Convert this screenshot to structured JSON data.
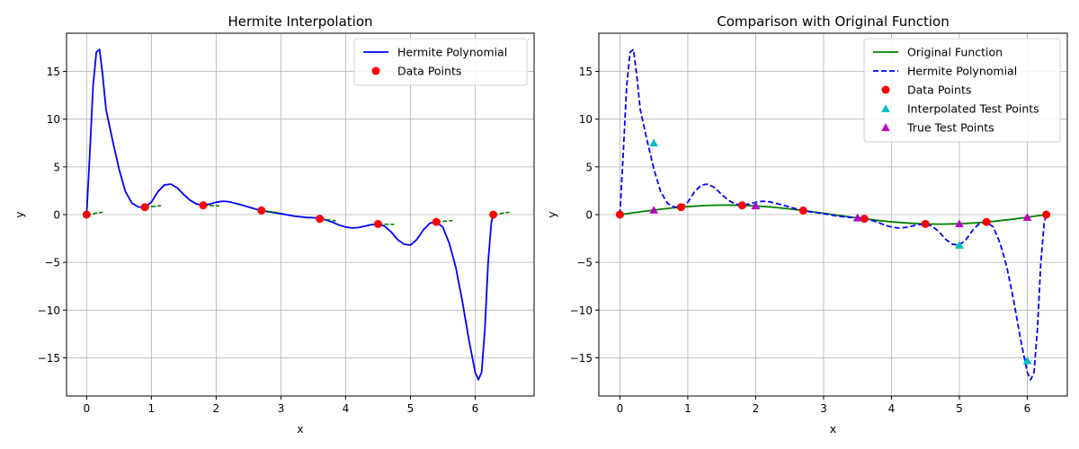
{
  "chart_data": [
    {
      "type": "line",
      "title": "Hermite Interpolation",
      "xlabel": "x",
      "ylabel": "y",
      "xlim": [
        -0.31,
        6.91
      ],
      "ylim": [
        -19.0,
        19.0
      ],
      "xticks": [
        0,
        1,
        2,
        3,
        4,
        5,
        6
      ],
      "xtick_labels": [
        "0",
        "1",
        "2",
        "3",
        "4",
        "5",
        "6"
      ],
      "yticks": [
        -15,
        -10,
        -5,
        0,
        5,
        10,
        15
      ],
      "ytick_labels": [
        "−15",
        "−10",
        "−5",
        "0",
        "5",
        "10",
        "15"
      ],
      "grid": true,
      "legend_position": "top-right",
      "series": [
        {
          "name": "Hermite Polynomial",
          "style": "solid",
          "color": "#0000ff",
          "x": [
            0,
            0.05,
            0.1,
            0.15,
            0.2,
            0.25,
            0.3,
            0.4,
            0.5,
            0.6,
            0.7,
            0.8,
            0.9,
            1.0,
            1.1,
            1.2,
            1.3,
            1.4,
            1.5,
            1.6,
            1.7,
            1.8,
            1.9,
            2.0,
            2.1,
            2.2,
            2.4,
            2.6,
            2.7,
            2.8,
            3.0,
            3.2,
            3.4,
            3.6,
            3.8,
            3.9,
            4.0,
            4.1,
            4.2,
            4.3,
            4.4,
            4.5,
            4.6,
            4.7,
            4.8,
            4.9,
            5.0,
            5.1,
            5.2,
            5.3,
            5.4,
            5.5,
            5.6,
            5.7,
            5.8,
            5.9,
            6.0,
            6.05,
            6.1,
            6.15,
            6.2,
            6.25,
            6.28
          ],
          "y": [
            0,
            6.5,
            13.5,
            17.0,
            17.3,
            14.5,
            11.0,
            7.8,
            4.8,
            2.4,
            1.2,
            0.8,
            0.78,
            1.3,
            2.4,
            3.1,
            3.2,
            2.8,
            2.1,
            1.5,
            1.1,
            1.0,
            1.1,
            1.3,
            1.4,
            1.35,
            1.0,
            0.6,
            0.43,
            0.3,
            0.1,
            -0.15,
            -0.3,
            -0.35,
            -0.8,
            -1.1,
            -1.3,
            -1.4,
            -1.35,
            -1.2,
            -1.05,
            -1.0,
            -1.2,
            -1.8,
            -2.6,
            -3.1,
            -3.2,
            -2.6,
            -1.6,
            -0.9,
            -0.77,
            -1.3,
            -3.0,
            -5.5,
            -9.0,
            -13.0,
            -16.5,
            -17.3,
            -16.5,
            -12.0,
            -5.0,
            -0.8,
            0.0
          ]
        },
        {
          "name": "Data Points",
          "style": "marker-circle",
          "color": "#ff0000",
          "x": [
            0,
            0.9,
            1.8,
            2.7,
            3.6,
            4.5,
            5.4,
            6.28
          ],
          "y": [
            0,
            0.78,
            0.97,
            0.43,
            -0.44,
            -0.98,
            -0.77,
            0.0
          ]
        },
        {
          "name": "",
          "style": "tangents",
          "color": "#008000",
          "segments": [
            [
              [
                0,
                0
              ],
              [
                0.25,
                0.25
              ]
            ],
            [
              [
                0.9,
                0.78
              ],
              [
                1.15,
                0.93
              ]
            ],
            [
              [
                1.8,
                0.97
              ],
              [
                2.05,
                0.91
              ]
            ],
            [
              [
                2.7,
                0.43
              ],
              [
                2.95,
                0.21
              ]
            ],
            [
              [
                3.6,
                -0.44
              ],
              [
                3.85,
                -0.66
              ]
            ],
            [
              [
                4.5,
                -0.98
              ],
              [
                4.75,
                -1.03
              ]
            ],
            [
              [
                5.4,
                -0.77
              ],
              [
                5.65,
                -0.61
              ]
            ],
            [
              [
                6.28,
                0.0
              ],
              [
                6.53,
                0.25
              ]
            ]
          ]
        }
      ]
    },
    {
      "type": "line",
      "title": "Comparison with Original Function",
      "xlabel": "x",
      "ylabel": "y",
      "xlim": [
        -0.31,
        6.59
      ],
      "ylim": [
        -19.0,
        19.0
      ],
      "xticks": [
        0,
        1,
        2,
        3,
        4,
        5,
        6
      ],
      "xtick_labels": [
        "0",
        "1",
        "2",
        "3",
        "4",
        "5",
        "6"
      ],
      "yticks": [
        -15,
        -10,
        -5,
        0,
        5,
        10,
        15
      ],
      "ytick_labels": [
        "−15",
        "−10",
        "−5",
        "0",
        "5",
        "10",
        "15"
      ],
      "grid": true,
      "legend_position": "top-right",
      "series": [
        {
          "name": "Original Function",
          "style": "solid",
          "color": "#008000",
          "x": [
            0,
            0.25,
            0.5,
            0.75,
            1.0,
            1.25,
            1.5,
            1.75,
            2.0,
            2.25,
            2.5,
            2.75,
            3.0,
            3.25,
            3.5,
            3.75,
            4.0,
            4.25,
            4.5,
            4.75,
            5.0,
            5.25,
            5.5,
            5.75,
            6.0,
            6.28
          ],
          "y": [
            0,
            0.25,
            0.48,
            0.68,
            0.84,
            0.95,
            1.0,
            0.98,
            0.91,
            0.78,
            0.6,
            0.38,
            0.14,
            -0.11,
            -0.35,
            -0.57,
            -0.76,
            -0.89,
            -0.98,
            -1.0,
            -0.96,
            -0.86,
            -0.71,
            -0.51,
            -0.28,
            0.0
          ]
        },
        {
          "name": "Hermite Polynomial",
          "style": "dashed",
          "color": "#0000ff",
          "x": [
            0,
            0.05,
            0.1,
            0.15,
            0.2,
            0.25,
            0.3,
            0.4,
            0.5,
            0.6,
            0.7,
            0.8,
            0.9,
            1.0,
            1.1,
            1.2,
            1.3,
            1.4,
            1.5,
            1.6,
            1.7,
            1.8,
            1.9,
            2.0,
            2.1,
            2.2,
            2.4,
            2.6,
            2.7,
            2.8,
            3.0,
            3.2,
            3.4,
            3.6,
            3.8,
            3.9,
            4.0,
            4.1,
            4.2,
            4.3,
            4.4,
            4.5,
            4.6,
            4.7,
            4.8,
            4.9,
            5.0,
            5.1,
            5.2,
            5.3,
            5.4,
            5.5,
            5.6,
            5.7,
            5.8,
            5.9,
            6.0,
            6.05,
            6.1,
            6.15,
            6.2,
            6.25,
            6.28
          ],
          "y": [
            0,
            6.5,
            13.5,
            17.0,
            17.3,
            14.5,
            11.0,
            7.8,
            4.8,
            2.4,
            1.2,
            0.8,
            0.78,
            1.3,
            2.4,
            3.1,
            3.2,
            2.8,
            2.1,
            1.5,
            1.1,
            1.0,
            1.1,
            1.3,
            1.4,
            1.35,
            1.0,
            0.6,
            0.43,
            0.3,
            0.1,
            -0.15,
            -0.3,
            -0.35,
            -0.8,
            -1.1,
            -1.3,
            -1.4,
            -1.35,
            -1.2,
            -1.05,
            -1.0,
            -1.2,
            -1.8,
            -2.6,
            -3.1,
            -3.2,
            -2.6,
            -1.6,
            -0.9,
            -0.77,
            -1.3,
            -3.0,
            -5.5,
            -9.0,
            -13.0,
            -16.5,
            -17.3,
            -16.5,
            -12.0,
            -5.0,
            -0.8,
            0.0
          ]
        },
        {
          "name": "Data Points",
          "style": "marker-circle",
          "color": "#ff0000",
          "x": [
            0,
            0.9,
            1.8,
            2.7,
            3.6,
            4.5,
            5.4,
            6.28
          ],
          "y": [
            0,
            0.78,
            0.97,
            0.43,
            -0.44,
            -0.98,
            -0.77,
            0.0
          ]
        },
        {
          "name": "Interpolated Test Points",
          "style": "marker-triangle",
          "color": "#00bfbf",
          "x": [
            0.5,
            2.0,
            3.5,
            5.0,
            6.0
          ],
          "y": [
            7.5,
            1.0,
            -0.3,
            -3.2,
            -15.3
          ]
        },
        {
          "name": "True Test Points",
          "style": "marker-triangle",
          "color": "#bf00bf",
          "x": [
            0.5,
            2.0,
            3.5,
            5.0,
            6.0
          ],
          "y": [
            0.48,
            0.91,
            -0.35,
            -0.96,
            -0.28
          ]
        }
      ]
    }
  ]
}
